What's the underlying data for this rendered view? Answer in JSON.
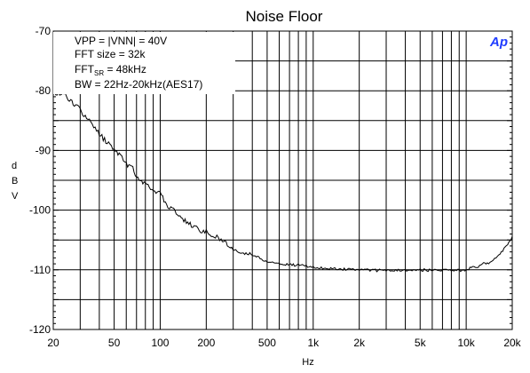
{
  "chart_data": {
    "type": "line",
    "title": "Noise Floor",
    "xlabel": "Hz",
    "ylabel": "dBV",
    "xscale": "log",
    "xlim": [
      20,
      20000
    ],
    "ylim": [
      -120,
      -70
    ],
    "x_ticks": [
      {
        "value": 20,
        "label": "20"
      },
      {
        "value": 50,
        "label": "50"
      },
      {
        "value": 100,
        "label": "100"
      },
      {
        "value": 200,
        "label": "200"
      },
      {
        "value": 500,
        "label": "500"
      },
      {
        "value": 1000,
        "label": "1k"
      },
      {
        "value": 2000,
        "label": "2k"
      },
      {
        "value": 5000,
        "label": "5k"
      },
      {
        "value": 10000,
        "label": "10k"
      },
      {
        "value": 20000,
        "label": "20k"
      }
    ],
    "y_ticks": [
      {
        "value": -70,
        "label": "-70"
      },
      {
        "value": -80,
        "label": "-80"
      },
      {
        "value": -90,
        "label": "-90"
      },
      {
        "value": -100,
        "label": "-100"
      },
      {
        "value": -110,
        "label": "-110"
      },
      {
        "value": -120,
        "label": "-120"
      }
    ],
    "grid": true,
    "line_color": "#000000",
    "annotations": {
      "vpp": "VPP = |VNN| = 40V",
      "fft_size": "FFT size = 32k",
      "fft_sr_main": "FFT",
      "fft_sr_sub": "SR",
      "fft_sr_rest": " = 48kHz",
      "bw": "BW = 22Hz-20kHz(AES17)"
    },
    "logo": "Ap",
    "logo_color": "#1f3cff",
    "series": [
      {
        "x": [
          20,
          22,
          24,
          26,
          28,
          30,
          33,
          36,
          40,
          45,
          50,
          55,
          60,
          65,
          70,
          80,
          90,
          100,
          110,
          120,
          140,
          160,
          180,
          200,
          220,
          250,
          280,
          300,
          350,
          400,
          450,
          500,
          600,
          700,
          800,
          900,
          1000,
          1200,
          1500,
          2000,
          2500,
          3000,
          4000,
          5000,
          6000,
          7000,
          8000,
          9000,
          10000,
          11000,
          12000,
          13000,
          14000,
          15000,
          16000,
          17000,
          18000,
          19000,
          20000
        ],
        "y": [
          -80.2,
          -80.4,
          -80.9,
          -81.5,
          -82.5,
          -83.2,
          -84.6,
          -85.6,
          -87.3,
          -88.7,
          -89.7,
          -90.8,
          -92.4,
          -92.3,
          -94.5,
          -95.6,
          -96.6,
          -97.2,
          -99.2,
          -99.6,
          -101.4,
          -102.6,
          -103.3,
          -103.6,
          -104.1,
          -105.0,
          -105.8,
          -106.6,
          -107.2,
          -107.4,
          -108.0,
          -108.7,
          -109.0,
          -109.2,
          -109.2,
          -109.4,
          -109.6,
          -109.7,
          -109.9,
          -110.0,
          -110.1,
          -110.1,
          -110.1,
          -110.0,
          -110.1,
          -110.1,
          -110.0,
          -110.1,
          -110.0,
          -109.6,
          -109.4,
          -109.0,
          -108.9,
          -108.3,
          -107.8,
          -107.0,
          -106.3,
          -105.5,
          -104.4
        ]
      }
    ]
  }
}
